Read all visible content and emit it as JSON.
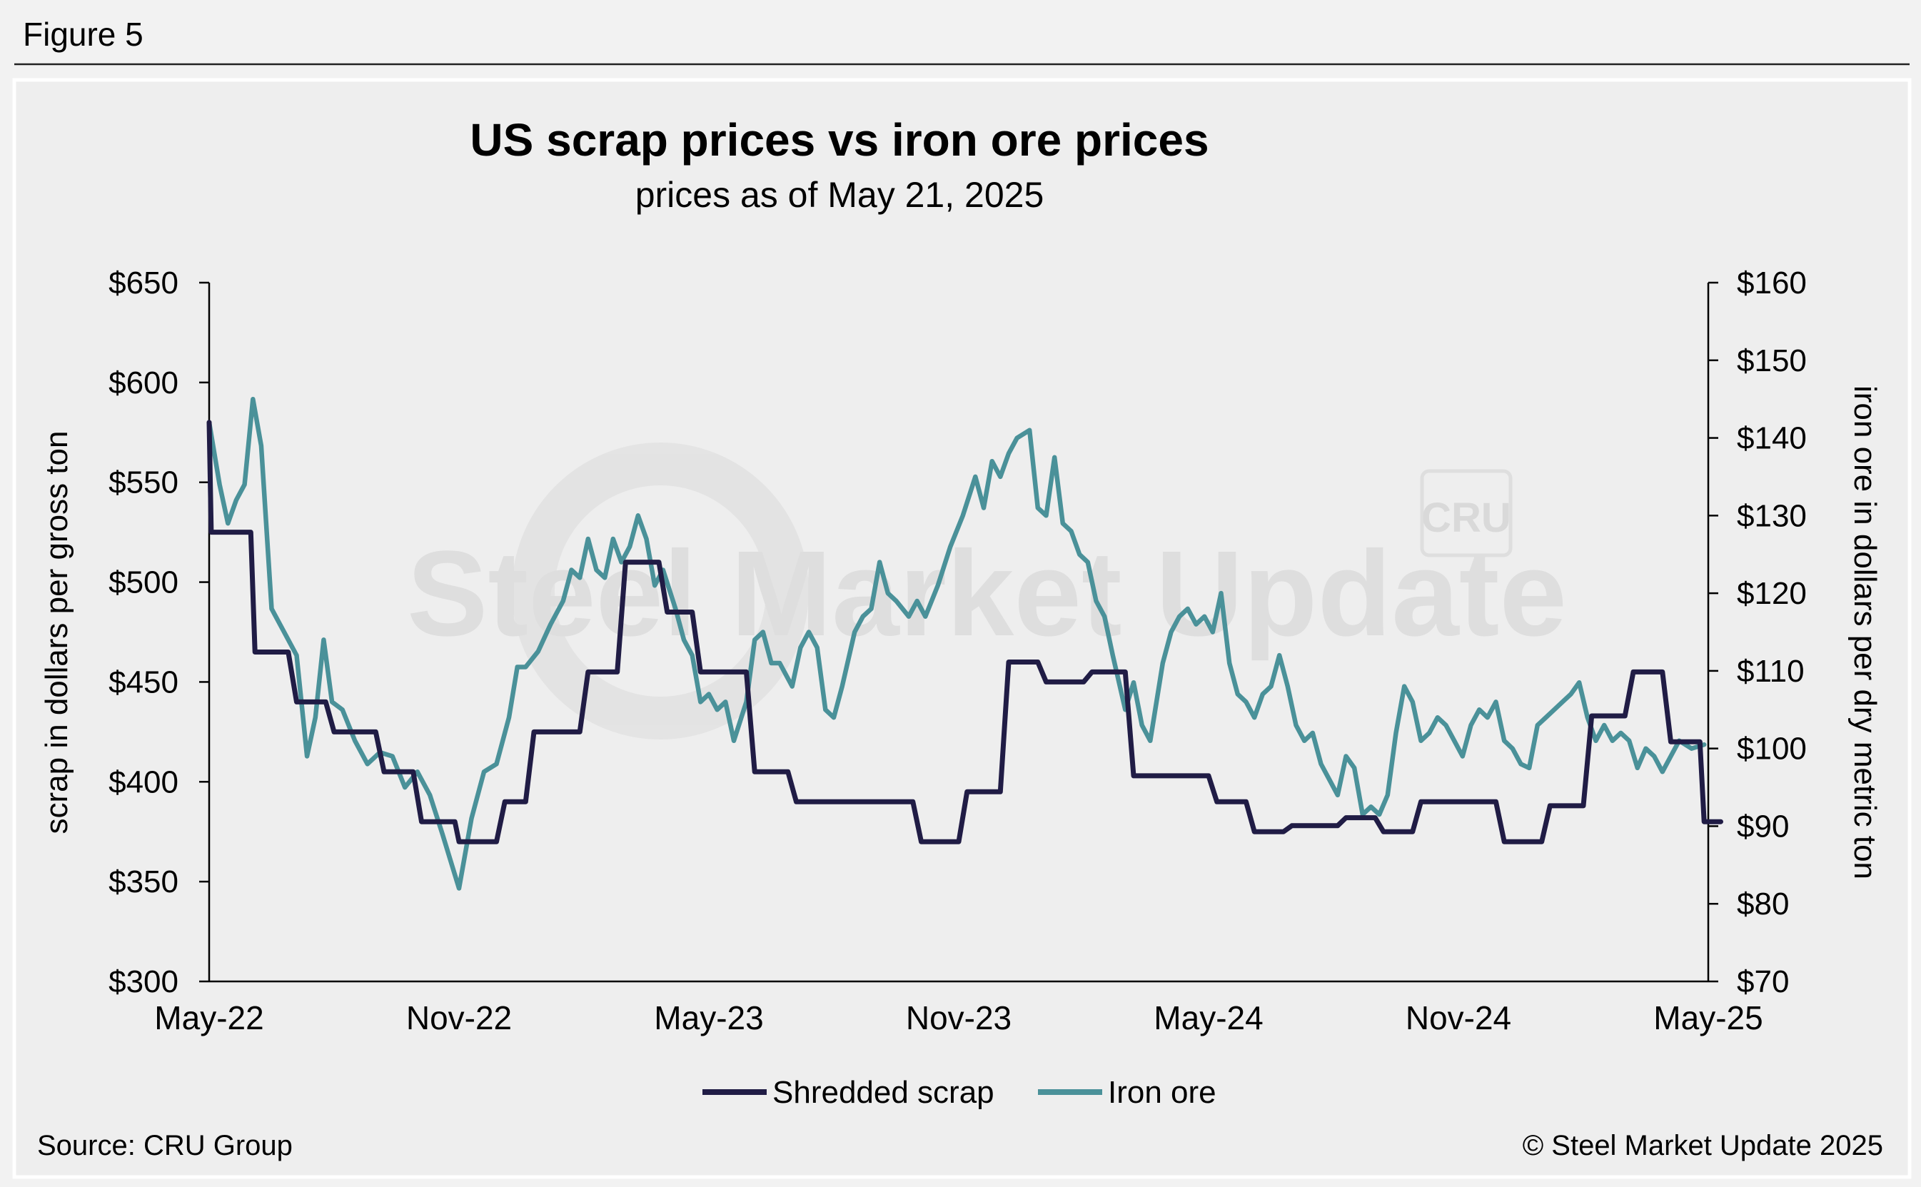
{
  "figure_label": "Figure 5",
  "watermark": {
    "text": "Steel Market Update",
    "badge": "CRU"
  },
  "source": "Source: CRU Group",
  "copyright": "© Steel Market Update 2025",
  "colors": {
    "background": "#f2f2f2",
    "panel": "#eeeeee",
    "scrap": "#201c45",
    "ore": "#4a9199",
    "axis": "#000000",
    "watermark": "#dedede"
  },
  "chart_data": {
    "type": "line",
    "title": "US scrap prices vs iron ore prices",
    "subtitle": "prices as of May 21, 2025",
    "xlabel": "",
    "ylabel_left": "scrap in dollars per gross ton",
    "ylabel_right": "iron ore in dollars per dry metric ton",
    "x_range_months": [
      0,
      36
    ],
    "x_ticks": [
      {
        "m": 0,
        "label": "May-22"
      },
      {
        "m": 6,
        "label": "Nov-22"
      },
      {
        "m": 12,
        "label": "May-23"
      },
      {
        "m": 18,
        "label": "Nov-23"
      },
      {
        "m": 24,
        "label": "May-24"
      },
      {
        "m": 30,
        "label": "Nov-24"
      },
      {
        "m": 36,
        "label": "May-25"
      }
    ],
    "ylim_left": [
      300,
      650
    ],
    "ylim_right": [
      70,
      160
    ],
    "y_ticks_left": [
      "$300",
      "$350",
      "$400",
      "$450",
      "$500",
      "$550",
      "$600",
      "$650"
    ],
    "y_ticks_right": [
      "$70",
      "$80",
      "$90",
      "$100",
      "$110",
      "$120",
      "$130",
      "$140",
      "$150",
      "$160"
    ],
    "legend_position": "bottom-center",
    "series": [
      {
        "name": "Shredded scrap",
        "axis": "left",
        "step": true,
        "points": [
          [
            0,
            580
          ],
          [
            0.05,
            525
          ],
          [
            1,
            525
          ],
          [
            1.1,
            465
          ],
          [
            1.9,
            465
          ],
          [
            2.1,
            440
          ],
          [
            2.8,
            440
          ],
          [
            3,
            425
          ],
          [
            4,
            425
          ],
          [
            4.2,
            405
          ],
          [
            4.9,
            405
          ],
          [
            5.1,
            380
          ],
          [
            5.9,
            380
          ],
          [
            6,
            370
          ],
          [
            6.9,
            370
          ],
          [
            7.1,
            390
          ],
          [
            7.6,
            390
          ],
          [
            7.8,
            425
          ],
          [
            8.9,
            425
          ],
          [
            9.1,
            455
          ],
          [
            9.8,
            455
          ],
          [
            10,
            510
          ],
          [
            10.8,
            510
          ],
          [
            11,
            485
          ],
          [
            11.6,
            485
          ],
          [
            11.8,
            455
          ],
          [
            12.9,
            455
          ],
          [
            13.1,
            405
          ],
          [
            13.9,
            405
          ],
          [
            14.1,
            390
          ],
          [
            16.9,
            390
          ],
          [
            17.1,
            370
          ],
          [
            18,
            370
          ],
          [
            18.2,
            395
          ],
          [
            19,
            395
          ],
          [
            19.2,
            460
          ],
          [
            19.9,
            460
          ],
          [
            20.1,
            450
          ],
          [
            21,
            450
          ],
          [
            21.2,
            455
          ],
          [
            22,
            455
          ],
          [
            22.2,
            403
          ],
          [
            24,
            403
          ],
          [
            24.2,
            390
          ],
          [
            24.9,
            390
          ],
          [
            25.1,
            375
          ],
          [
            25.8,
            375
          ],
          [
            26,
            378
          ],
          [
            27.1,
            378
          ],
          [
            27.3,
            382
          ],
          [
            28,
            382
          ],
          [
            28.2,
            375
          ],
          [
            28.9,
            375
          ],
          [
            29.1,
            390
          ],
          [
            30.9,
            390
          ],
          [
            31.1,
            370
          ],
          [
            32,
            370
          ],
          [
            32.2,
            388
          ],
          [
            33,
            388
          ],
          [
            33.2,
            433
          ],
          [
            34,
            433
          ],
          [
            34.2,
            455
          ],
          [
            34.9,
            455
          ],
          [
            35.1,
            420
          ],
          [
            35.8,
            420
          ],
          [
            35.9,
            380
          ],
          [
            36.3,
            380
          ]
        ]
      },
      {
        "name": "Iron ore",
        "axis": "right",
        "step": false,
        "points": [
          [
            0,
            142
          ],
          [
            0.25,
            134
          ],
          [
            0.45,
            129
          ],
          [
            0.65,
            132
          ],
          [
            0.85,
            134
          ],
          [
            1.05,
            145
          ],
          [
            1.25,
            139
          ],
          [
            1.5,
            118
          ],
          [
            1.8,
            115
          ],
          [
            2.1,
            112
          ],
          [
            2.35,
            99
          ],
          [
            2.55,
            104
          ],
          [
            2.75,
            114
          ],
          [
            2.95,
            106
          ],
          [
            3.2,
            105
          ],
          [
            3.5,
            101
          ],
          [
            3.8,
            98
          ],
          [
            4.1,
            99.5
          ],
          [
            4.4,
            99
          ],
          [
            4.7,
            95
          ],
          [
            5.0,
            97
          ],
          [
            5.3,
            94
          ],
          [
            5.6,
            89
          ],
          [
            6.0,
            82
          ],
          [
            6.3,
            91
          ],
          [
            6.6,
            97
          ],
          [
            6.9,
            98
          ],
          [
            7.2,
            104
          ],
          [
            7.4,
            110.5
          ],
          [
            7.6,
            110.5
          ],
          [
            7.9,
            112.5
          ],
          [
            8.2,
            116
          ],
          [
            8.5,
            119
          ],
          [
            8.7,
            123
          ],
          [
            8.9,
            122
          ],
          [
            9.1,
            127
          ],
          [
            9.3,
            123
          ],
          [
            9.5,
            122
          ],
          [
            9.7,
            127
          ],
          [
            9.9,
            124
          ],
          [
            10.1,
            126
          ],
          [
            10.3,
            130
          ],
          [
            10.5,
            127
          ],
          [
            10.7,
            121
          ],
          [
            10.9,
            123
          ],
          [
            11.2,
            118
          ],
          [
            11.4,
            114
          ],
          [
            11.6,
            112
          ],
          [
            11.8,
            106
          ],
          [
            12.0,
            107
          ],
          [
            12.2,
            105
          ],
          [
            12.4,
            106
          ],
          [
            12.6,
            101
          ],
          [
            12.9,
            106
          ],
          [
            13.1,
            114
          ],
          [
            13.3,
            115
          ],
          [
            13.5,
            111
          ],
          [
            13.7,
            111
          ],
          [
            14.0,
            108
          ],
          [
            14.2,
            113
          ],
          [
            14.4,
            115
          ],
          [
            14.6,
            113
          ],
          [
            14.8,
            105
          ],
          [
            15.0,
            104
          ],
          [
            15.2,
            108
          ],
          [
            15.5,
            115
          ],
          [
            15.7,
            117
          ],
          [
            15.9,
            118
          ],
          [
            16.1,
            124
          ],
          [
            16.3,
            120
          ],
          [
            16.5,
            119
          ],
          [
            16.8,
            117
          ],
          [
            17.0,
            119
          ],
          [
            17.2,
            117
          ],
          [
            17.5,
            121
          ],
          [
            17.8,
            126
          ],
          [
            18.1,
            130
          ],
          [
            18.4,
            135
          ],
          [
            18.6,
            131
          ],
          [
            18.8,
            137
          ],
          [
            19.0,
            135
          ],
          [
            19.2,
            138
          ],
          [
            19.4,
            140
          ],
          [
            19.7,
            141
          ],
          [
            19.9,
            131
          ],
          [
            20.1,
            130
          ],
          [
            20.3,
            137.5
          ],
          [
            20.5,
            129
          ],
          [
            20.7,
            128
          ],
          [
            20.9,
            125
          ],
          [
            21.1,
            124
          ],
          [
            21.3,
            119
          ],
          [
            21.5,
            117
          ],
          [
            21.7,
            112
          ],
          [
            22.0,
            105
          ],
          [
            22.2,
            108.5
          ],
          [
            22.4,
            103
          ],
          [
            22.6,
            101
          ],
          [
            22.9,
            111
          ],
          [
            23.1,
            115
          ],
          [
            23.3,
            117
          ],
          [
            23.5,
            118
          ],
          [
            23.7,
            116
          ],
          [
            23.9,
            117
          ],
          [
            24.1,
            115
          ],
          [
            24.3,
            120
          ],
          [
            24.5,
            111
          ],
          [
            24.7,
            107
          ],
          [
            24.9,
            106
          ],
          [
            25.1,
            104
          ],
          [
            25.3,
            107
          ],
          [
            25.5,
            108
          ],
          [
            25.7,
            112
          ],
          [
            25.9,
            108
          ],
          [
            26.1,
            103
          ],
          [
            26.3,
            101
          ],
          [
            26.5,
            102
          ],
          [
            26.7,
            98
          ],
          [
            26.9,
            96
          ],
          [
            27.1,
            94
          ],
          [
            27.3,
            99
          ],
          [
            27.5,
            97.5
          ],
          [
            27.7,
            91.5
          ],
          [
            27.9,
            92.5
          ],
          [
            28.1,
            91.5
          ],
          [
            28.3,
            94
          ],
          [
            28.5,
            102
          ],
          [
            28.7,
            108
          ],
          [
            28.9,
            106
          ],
          [
            29.1,
            101
          ],
          [
            29.3,
            102
          ],
          [
            29.5,
            104
          ],
          [
            29.7,
            103
          ],
          [
            29.9,
            101
          ],
          [
            30.1,
            99
          ],
          [
            30.3,
            103
          ],
          [
            30.5,
            105
          ],
          [
            30.7,
            104
          ],
          [
            30.9,
            106
          ],
          [
            31.1,
            101
          ],
          [
            31.3,
            100
          ],
          [
            31.5,
            98
          ],
          [
            31.7,
            97.5
          ],
          [
            31.9,
            103
          ],
          [
            32.1,
            104
          ],
          [
            32.3,
            105
          ],
          [
            32.5,
            106
          ],
          [
            32.7,
            107
          ],
          [
            32.9,
            108.5
          ],
          [
            33.1,
            104
          ],
          [
            33.3,
            101
          ],
          [
            33.5,
            103
          ],
          [
            33.7,
            101
          ],
          [
            33.9,
            102
          ],
          [
            34.1,
            101
          ],
          [
            34.3,
            97.5
          ],
          [
            34.5,
            100
          ],
          [
            34.7,
            99
          ],
          [
            34.9,
            97
          ],
          [
            35.1,
            99
          ],
          [
            35.3,
            101
          ],
          [
            35.6,
            100
          ],
          [
            35.9,
            100.5
          ]
        ]
      }
    ]
  }
}
